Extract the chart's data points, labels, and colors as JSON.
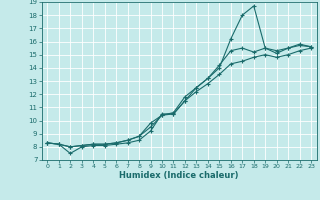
{
  "xlabel": "Humidex (Indice chaleur)",
  "bg_color": "#c5eaea",
  "grid_color": "#ffffff",
  "line_color": "#1a6b6b",
  "xlim": [
    -0.5,
    23.5
  ],
  "ylim": [
    7,
    19
  ],
  "xticks": [
    0,
    1,
    2,
    3,
    4,
    5,
    6,
    7,
    8,
    9,
    10,
    11,
    12,
    13,
    14,
    15,
    16,
    17,
    18,
    19,
    20,
    21,
    22,
    23
  ],
  "yticks": [
    7,
    8,
    9,
    10,
    11,
    12,
    13,
    14,
    15,
    16,
    17,
    18,
    19
  ],
  "series": [
    {
      "x": [
        0,
        1,
        2,
        3,
        4,
        5,
        6,
        7,
        8,
        9,
        10,
        11,
        12,
        13,
        14,
        15,
        16,
        17,
        18,
        19,
        20,
        21,
        22,
        23
      ],
      "y": [
        8.3,
        8.2,
        7.5,
        8.0,
        8.1,
        8.1,
        8.2,
        8.3,
        8.5,
        9.2,
        10.5,
        10.5,
        11.5,
        12.5,
        13.2,
        14.0,
        16.2,
        18.0,
        18.7,
        15.5,
        15.1,
        15.5,
        15.8,
        15.6
      ]
    },
    {
      "x": [
        0,
        1,
        2,
        3,
        4,
        5,
        6,
        7,
        8,
        9,
        10,
        11,
        12,
        13,
        14,
        15,
        16,
        17,
        18,
        19,
        20,
        21,
        22,
        23
      ],
      "y": [
        8.3,
        8.2,
        8.0,
        8.1,
        8.2,
        8.2,
        8.3,
        8.5,
        8.8,
        9.8,
        10.4,
        10.6,
        11.8,
        12.5,
        13.2,
        14.2,
        15.3,
        15.5,
        15.2,
        15.5,
        15.3,
        15.5,
        15.7,
        15.6
      ]
    },
    {
      "x": [
        0,
        1,
        2,
        3,
        4,
        5,
        6,
        7,
        8,
        9,
        10,
        11,
        12,
        13,
        14,
        15,
        16,
        17,
        18,
        19,
        20,
        21,
        22,
        23
      ],
      "y": [
        8.3,
        8.2,
        8.0,
        8.1,
        8.2,
        8.2,
        8.3,
        8.5,
        8.8,
        9.5,
        10.4,
        10.5,
        11.5,
        12.2,
        12.8,
        13.5,
        14.3,
        14.5,
        14.8,
        15.0,
        14.8,
        15.0,
        15.3,
        15.5
      ]
    }
  ]
}
